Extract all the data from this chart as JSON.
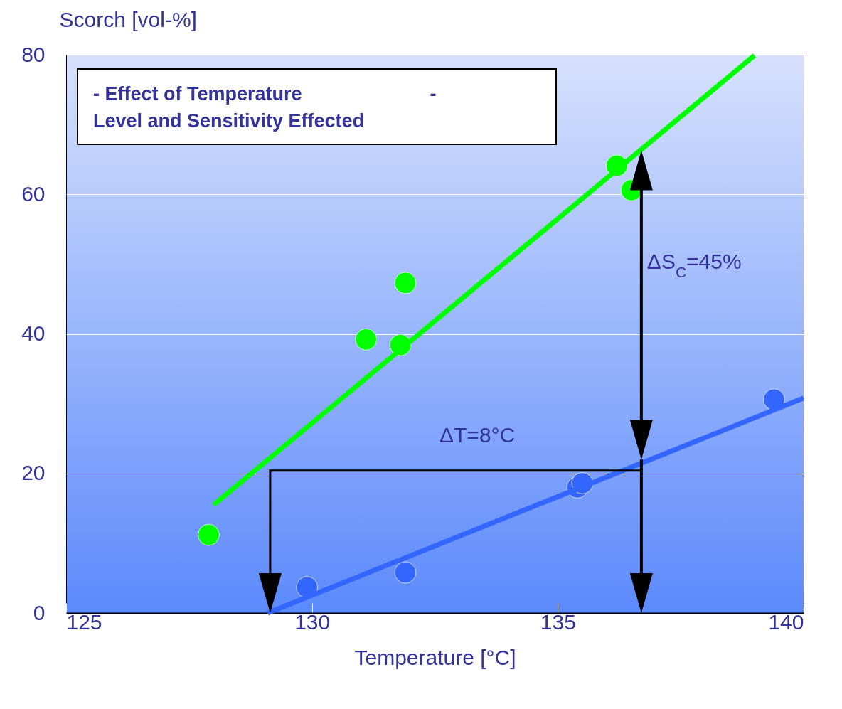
{
  "chart_data": {
    "type": "scatter",
    "xlabel": "Temperature [°C]",
    "ylabel": "Scorch [vol-%]",
    "xlim": [
      125,
      140
    ],
    "xticks": [
      125,
      130,
      135,
      140
    ],
    "ylim": [
      0,
      80
    ],
    "yticks": [
      0,
      20,
      40,
      60,
      80
    ],
    "grid": "y",
    "marker": "circle",
    "series": [
      {
        "color": "#00ff00",
        "x": [
          127.9,
          131.1,
          131.8,
          131.9,
          136.2,
          136.5
        ],
        "values": [
          11.2,
          39.2,
          38.4,
          47.3,
          64.1,
          60.6
        ]
      },
      {
        "color": "#3366ff",
        "x": [
          129.9,
          131.9,
          135.4,
          135.5,
          139.4
        ],
        "values": [
          3.7,
          5.8,
          18.0,
          18.6,
          30.6
        ]
      },
      {
        "type": "line",
        "marker": "none",
        "color": "#00ff00",
        "x": [
          128.0,
          139.0
        ],
        "values": [
          15.5,
          79.9
        ]
      },
      {
        "type": "line",
        "marker": "none",
        "color": "#3366ff",
        "x": [
          129.1,
          140.0
        ],
        "values": [
          0,
          30.8
        ]
      }
    ],
    "annotations": [
      "- Effect of Temperature                        -\nLevel and Sensitivity Effected",
      "ΔT=8°C",
      "ΔS$_{C}$=45%"
    ]
  }
}
